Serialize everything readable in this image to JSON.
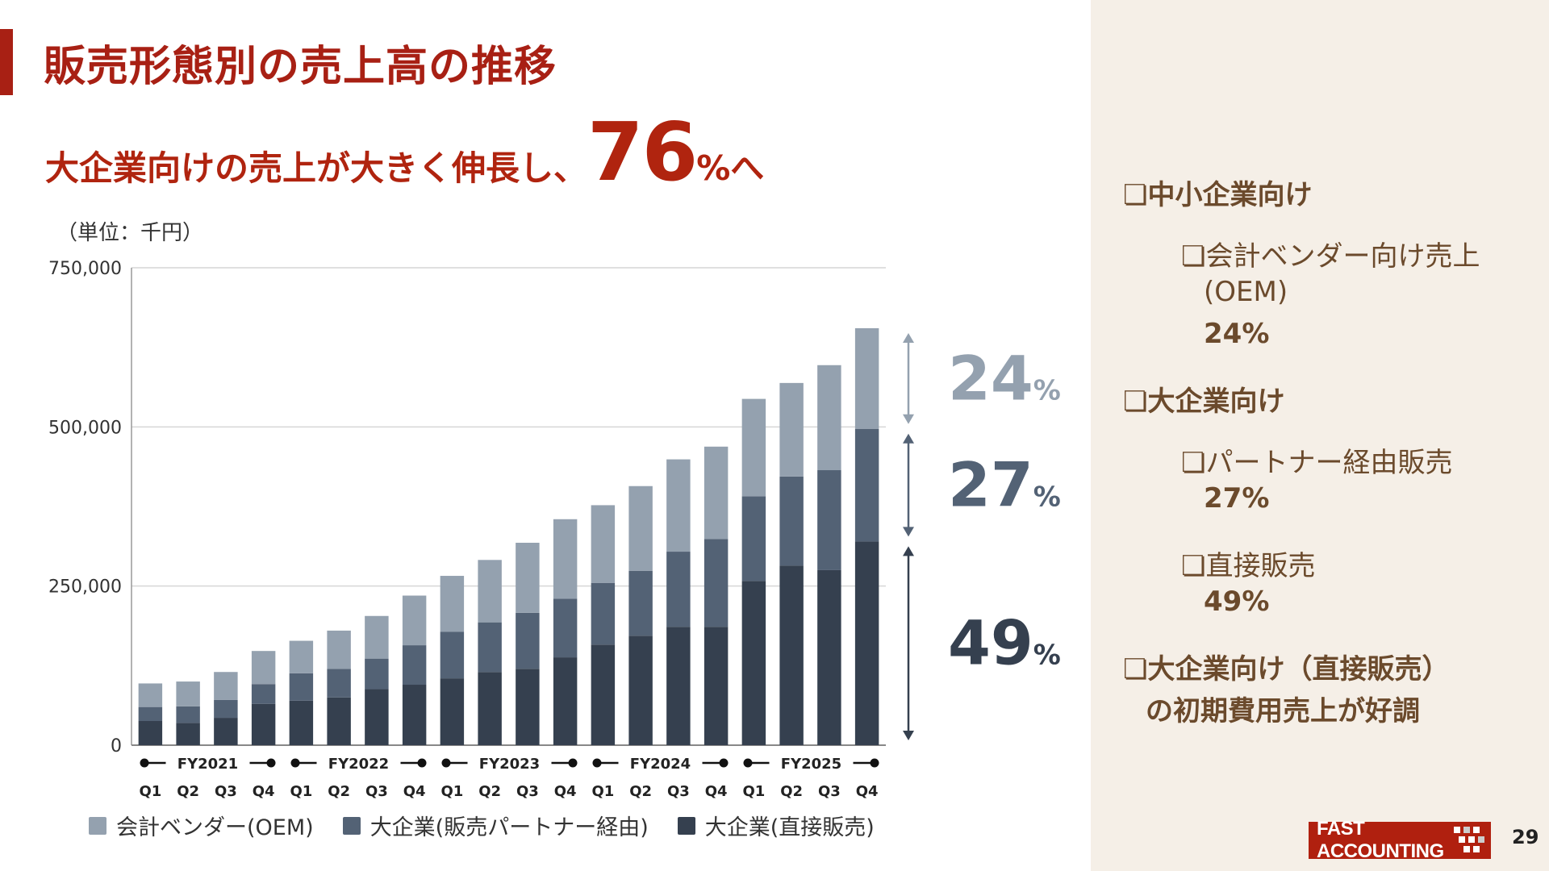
{
  "title": "販売形態別の売上高の推移",
  "headline": {
    "text": "大企業向けの売上が大きく伸長し、",
    "big": "76",
    "suffix": "%へ"
  },
  "unit_label": "（単位：千円）",
  "chart_data": {
    "type": "bar",
    "stacked": true,
    "fiscal_years": [
      "FY2021",
      "FY2022",
      "FY2023",
      "FY2024",
      "FY2025"
    ],
    "categories": [
      "Q1",
      "Q2",
      "Q3",
      "Q4",
      "Q1",
      "Q2",
      "Q3",
      "Q4",
      "Q1",
      "Q2",
      "Q3",
      "Q4",
      "Q1",
      "Q2",
      "Q3",
      "Q4",
      "Q1",
      "Q2",
      "Q3",
      "Q4"
    ],
    "series": [
      {
        "name": "大企業(直接販売)",
        "color": "#35404f",
        "values": [
          38000,
          35000,
          43000,
          65000,
          70000,
          75000,
          88000,
          95000,
          105000,
          115000,
          120000,
          138000,
          158000,
          172000,
          186000,
          186000,
          258000,
          282000,
          275000,
          320000
        ]
      },
      {
        "name": "大企業(販売パートナー経由)",
        "color": "#536275",
        "values": [
          22000,
          26000,
          28000,
          31000,
          43000,
          45000,
          48000,
          62000,
          73000,
          78000,
          88000,
          92000,
          97000,
          102000,
          118000,
          138000,
          133000,
          140000,
          157000,
          177000
        ]
      },
      {
        "name": "会計ベンダー(OEM)",
        "color": "#94a1af",
        "values": [
          37000,
          39000,
          44000,
          52000,
          51000,
          60000,
          67000,
          78000,
          88000,
          98000,
          110000,
          125000,
          122000,
          133000,
          145000,
          145000,
          153000,
          147000,
          165000,
          158000
        ]
      }
    ],
    "yticks": [
      "0",
      "250,000",
      "500,000",
      "750,000"
    ],
    "ylim": [
      0,
      750000
    ],
    "grid": true,
    "legend_position": "bottom",
    "annotations": [
      {
        "value": "24",
        "unit": "%",
        "color": "#94a1af"
      },
      {
        "value": "27",
        "unit": "%",
        "color": "#536275"
      },
      {
        "value": "49",
        "unit": "%",
        "color": "#35404f"
      }
    ]
  },
  "sidebar": {
    "sme_heading": "❏中小企業向け",
    "oem_label": "❏会計ベンダー向け売上",
    "oem_label_2": "(OEM)",
    "oem_pct": "24%",
    "ent_heading": "❏大企業向け",
    "partner_label": "❏パートナー経由販売",
    "partner_pct": "27%",
    "direct_label": "❏直接販売",
    "direct_pct": "49%",
    "note_line1": "❏大企業向け（直接販売）",
    "note_line2": "の初期費用売上が好調"
  },
  "logo_text": "FAST ACCOUNTING",
  "page_number": "29"
}
